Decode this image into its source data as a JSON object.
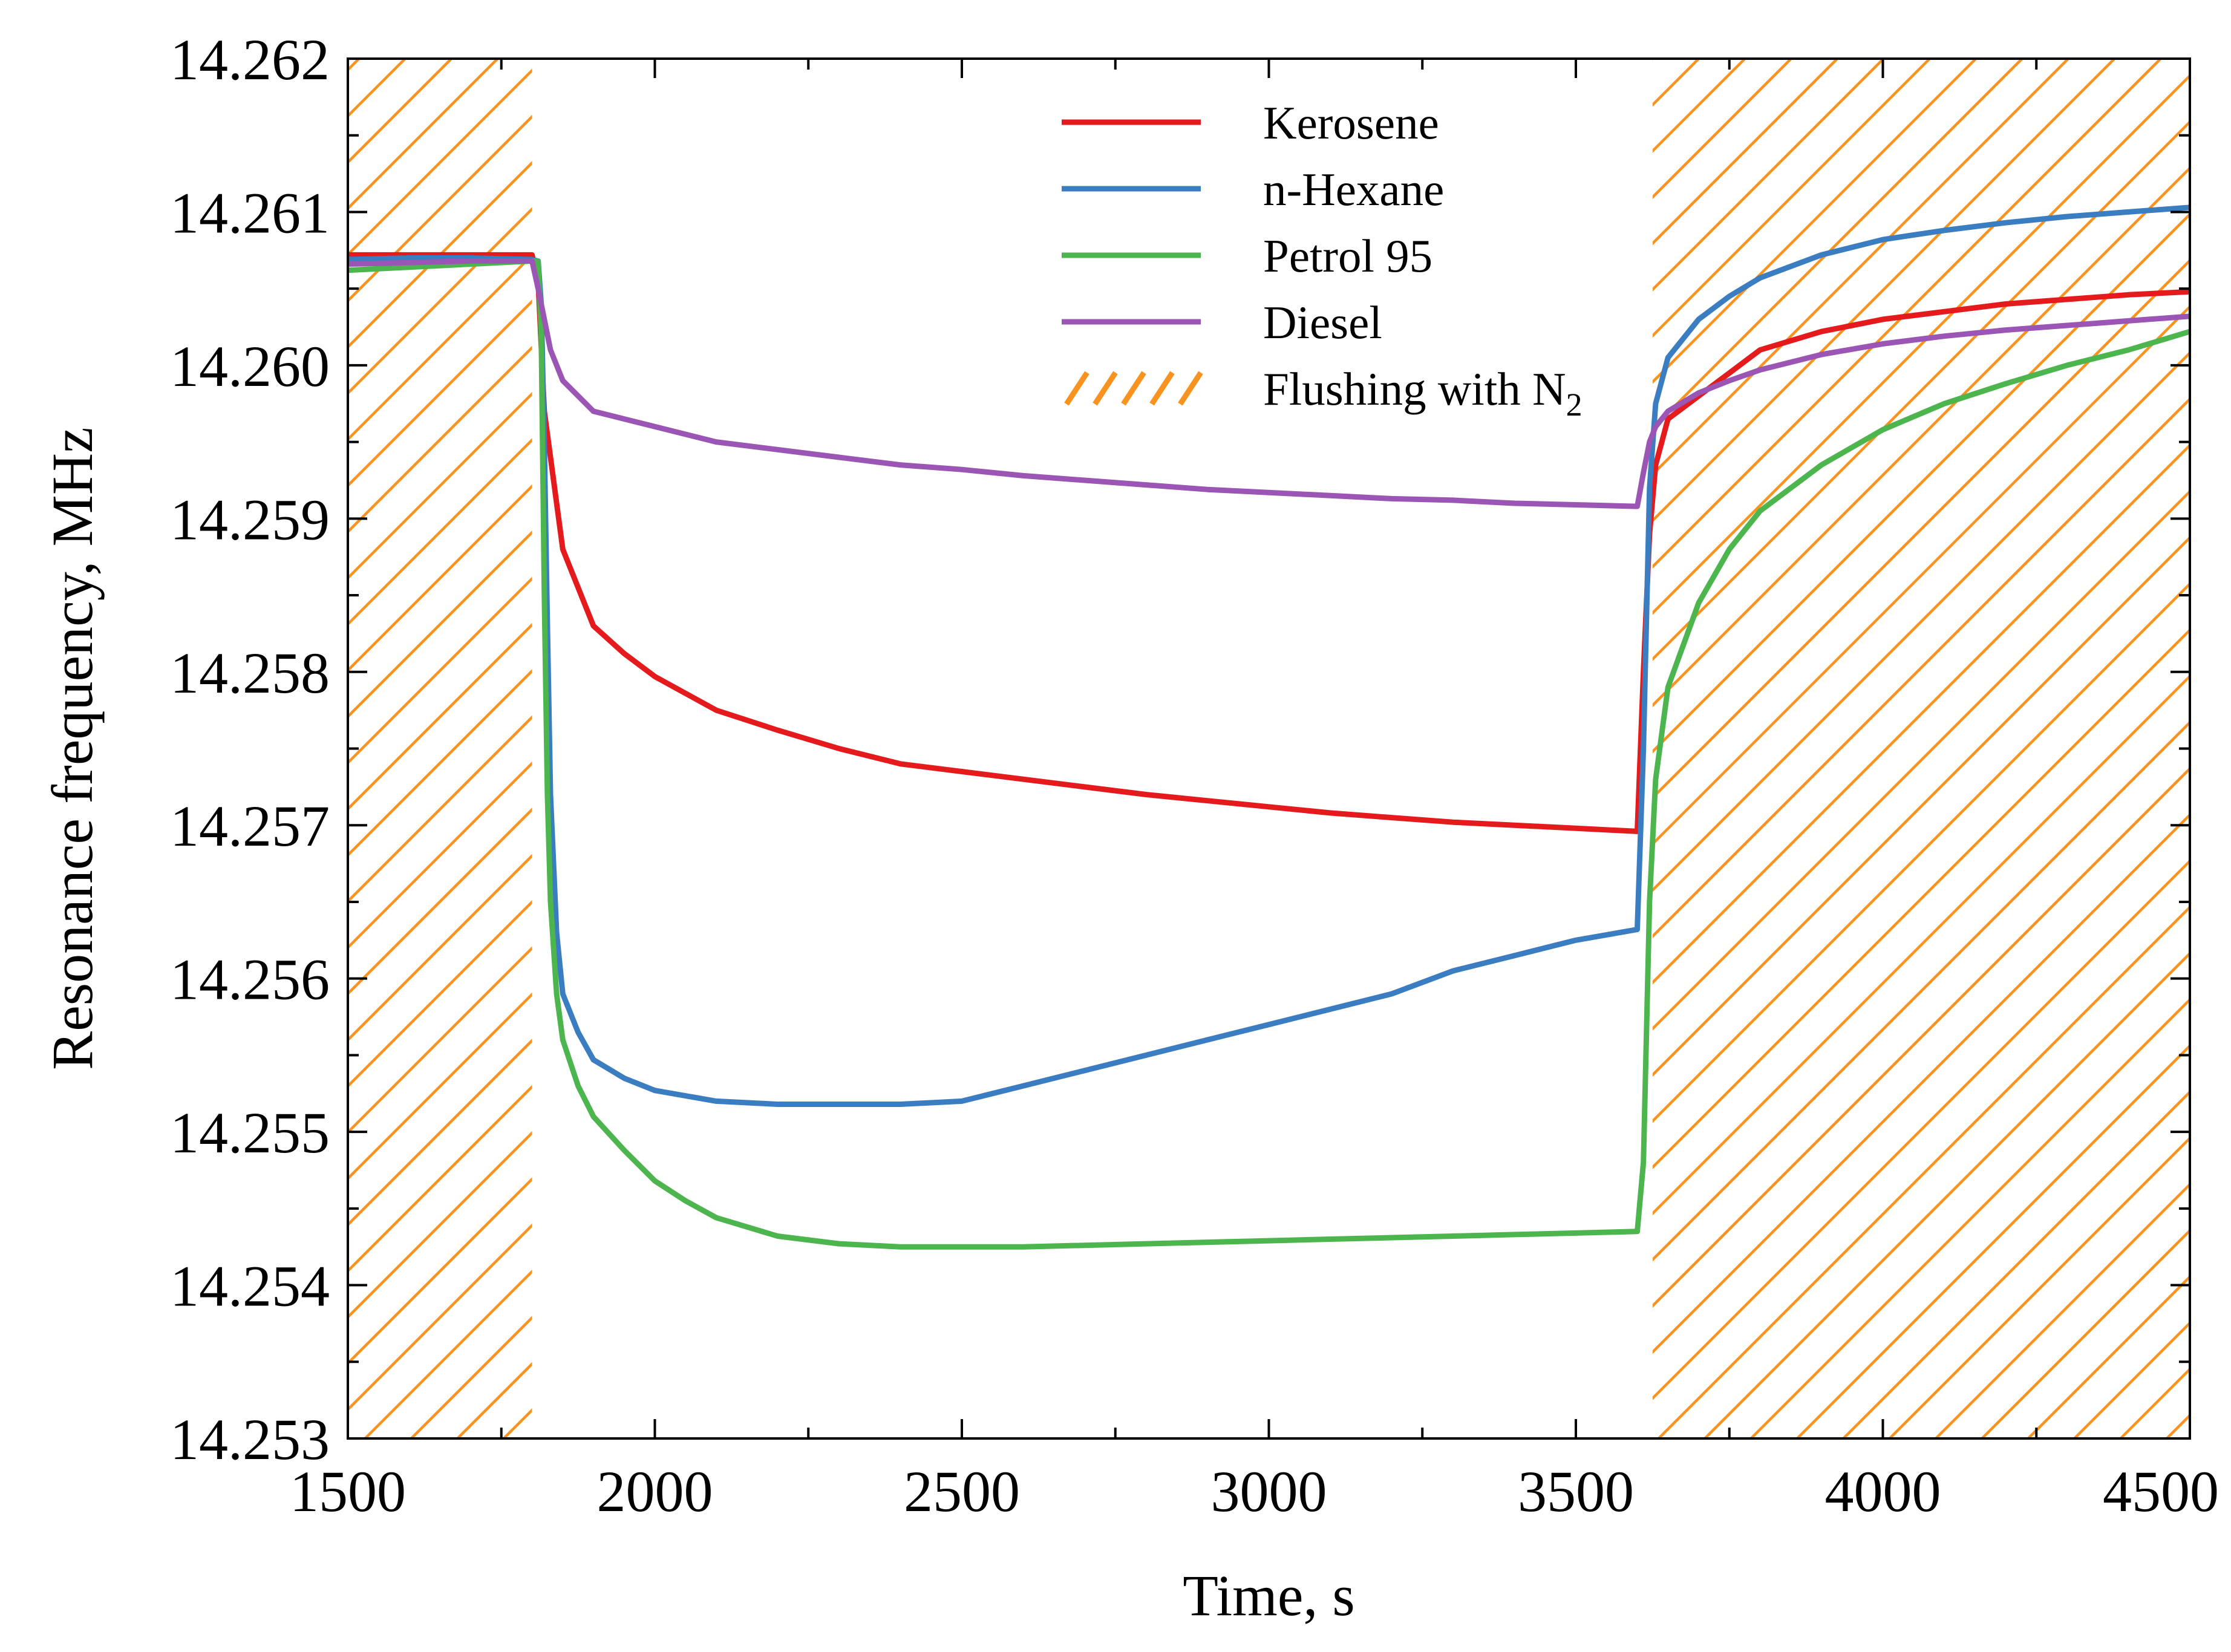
{
  "chart_data": {
    "type": "line",
    "title": "",
    "xlabel": "Time, s",
    "ylabel": "Resonance frequency, MHz",
    "xlim": [
      1500,
      4500
    ],
    "ylim": [
      14.253,
      14.262
    ],
    "xticks": [
      1500,
      2000,
      2500,
      3000,
      3500,
      4000,
      4500
    ],
    "yticks": [
      14.253,
      14.254,
      14.255,
      14.256,
      14.257,
      14.258,
      14.259,
      14.26,
      14.261,
      14.262
    ],
    "x_tick_labels": [
      "1500",
      "2000",
      "2500",
      "3000",
      "3500",
      "4000",
      "4500"
    ],
    "y_tick_labels": [
      "14.253",
      "14.254",
      "14.255",
      "14.256",
      "14.257",
      "14.258",
      "14.259",
      "14.260",
      "14.261",
      "14.262"
    ],
    "grid": false,
    "legend_position": "top-right",
    "shaded_regions": [
      {
        "name": "Flushing with N2",
        "label_main": "Flushing with N",
        "label_sub": "2",
        "color": "#F7931E",
        "x_start": 1500,
        "x_end": 1800
      },
      {
        "name": "Flushing with N2",
        "label_main": "Flushing with N",
        "label_sub": "2",
        "color": "#F7931E",
        "x_start": 3625,
        "x_end": 4500
      }
    ],
    "series": [
      {
        "name": "Kerosene",
        "color": "#E41A1C",
        "x": [
          1500,
          1600,
          1700,
          1800,
          1810,
          1820,
          1830,
          1850,
          1900,
          1950,
          2000,
          2100,
          2200,
          2300,
          2400,
          2500,
          2600,
          2700,
          2800,
          2900,
          3000,
          3100,
          3200,
          3300,
          3400,
          3500,
          3600,
          3610,
          3620,
          3630,
          3650,
          3700,
          3750,
          3800,
          3900,
          4000,
          4100,
          4200,
          4300,
          4400,
          4500
        ],
        "y": [
          14.26072,
          14.26072,
          14.26072,
          14.26072,
          14.26055,
          14.2597,
          14.2594,
          14.2588,
          14.2583,
          14.25812,
          14.25797,
          14.25775,
          14.25762,
          14.2575,
          14.2574,
          14.25735,
          14.2573,
          14.25725,
          14.2572,
          14.25716,
          14.25712,
          14.25708,
          14.25705,
          14.25702,
          14.257,
          14.25698,
          14.25696,
          14.258,
          14.2589,
          14.25935,
          14.25965,
          14.2598,
          14.25995,
          14.2601,
          14.26022,
          14.2603,
          14.26035,
          14.2604,
          14.26043,
          14.26046,
          14.26048
        ]
      },
      {
        "name": "n-Hexane",
        "color": "#3A7DC1",
        "x": [
          1500,
          1600,
          1700,
          1800,
          1810,
          1815,
          1820,
          1825,
          1830,
          1840,
          1850,
          1875,
          1900,
          1950,
          2000,
          2100,
          2200,
          2300,
          2400,
          2500,
          2600,
          2700,
          2800,
          2900,
          3000,
          3100,
          3200,
          3300,
          3400,
          3500,
          3600,
          3610,
          3620,
          3630,
          3650,
          3700,
          3750,
          3800,
          3900,
          4000,
          4100,
          4200,
          4300,
          4400,
          4500
        ],
        "y": [
          14.26069,
          14.2607,
          14.2607,
          14.26069,
          14.26068,
          14.2604,
          14.2595,
          14.2583,
          14.2572,
          14.2563,
          14.2559,
          14.25565,
          14.25547,
          14.25535,
          14.25527,
          14.2552,
          14.25518,
          14.25518,
          14.25518,
          14.2552,
          14.2553,
          14.2554,
          14.2555,
          14.2556,
          14.2557,
          14.2558,
          14.2559,
          14.25605,
          14.25615,
          14.25625,
          14.25632,
          14.2575,
          14.2592,
          14.25975,
          14.26005,
          14.2603,
          14.26045,
          14.26057,
          14.26072,
          14.26082,
          14.26088,
          14.26093,
          14.26097,
          14.261,
          14.26103
        ]
      },
      {
        "name": "Petrol 95",
        "color": "#4DB54D",
        "x": [
          1500,
          1600,
          1700,
          1800,
          1810,
          1815,
          1820,
          1825,
          1830,
          1840,
          1850,
          1875,
          1900,
          1950,
          2000,
          2050,
          2100,
          2200,
          2300,
          2400,
          2500,
          2600,
          2700,
          2800,
          2900,
          3000,
          3100,
          3200,
          3300,
          3400,
          3500,
          3600,
          3610,
          3620,
          3630,
          3650,
          3700,
          3750,
          3800,
          3900,
          4000,
          4100,
          4200,
          4300,
          4400,
          4500
        ],
        "y": [
          14.26062,
          14.26064,
          14.26066,
          14.26068,
          14.26068,
          14.2602,
          14.2585,
          14.2572,
          14.2565,
          14.2559,
          14.2556,
          14.2553,
          14.2551,
          14.25488,
          14.25468,
          14.25455,
          14.25444,
          14.25432,
          14.25427,
          14.25425,
          14.25425,
          14.25425,
          14.25426,
          14.25427,
          14.25428,
          14.25429,
          14.2543,
          14.25431,
          14.25432,
          14.25433,
          14.25434,
          14.25435,
          14.2548,
          14.2565,
          14.2573,
          14.2579,
          14.25845,
          14.2588,
          14.25905,
          14.25935,
          14.25958,
          14.25975,
          14.25988,
          14.26,
          14.2601,
          14.26022
        ]
      },
      {
        "name": "Diesel",
        "color": "#9B55B4",
        "x": [
          1500,
          1600,
          1700,
          1800,
          1810,
          1820,
          1830,
          1850,
          1900,
          1950,
          2000,
          2100,
          2200,
          2300,
          2400,
          2500,
          2600,
          2700,
          2800,
          2900,
          3000,
          3100,
          3200,
          3300,
          3400,
          3500,
          3600,
          3610,
          3620,
          3630,
          3650,
          3700,
          3750,
          3800,
          3900,
          4000,
          4100,
          4200,
          4300,
          4400,
          4500
        ],
        "y": [
          14.26066,
          14.26067,
          14.26068,
          14.26068,
          14.2605,
          14.2603,
          14.2601,
          14.2599,
          14.2597,
          14.25965,
          14.2596,
          14.2595,
          14.25945,
          14.2594,
          14.25935,
          14.25932,
          14.25928,
          14.25925,
          14.25922,
          14.25919,
          14.25917,
          14.25915,
          14.25913,
          14.25912,
          14.2591,
          14.25909,
          14.25908,
          14.2593,
          14.2595,
          14.2596,
          14.2597,
          14.25982,
          14.2599,
          14.25997,
          14.26007,
          14.26014,
          14.26019,
          14.26023,
          14.26026,
          14.26029,
          14.26032
        ]
      }
    ]
  }
}
